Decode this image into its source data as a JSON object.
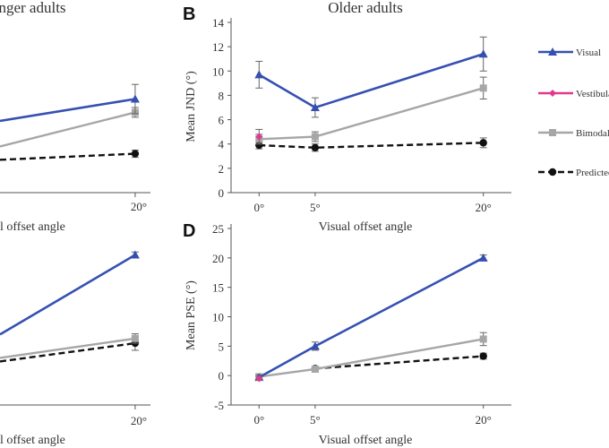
{
  "legend_items": [
    {
      "name": "Visual",
      "color": "#3650b2",
      "marker": "triangle",
      "dash": false
    },
    {
      "name": "Vestibular",
      "color": "#e3388f",
      "marker": "diamond",
      "dash": false
    },
    {
      "name": "Bimodal",
      "color": "#a6a6a6",
      "marker": "square",
      "dash": false
    },
    {
      "name": "Predicted",
      "color": "#111111",
      "marker": "circle",
      "dash": true
    }
  ],
  "chart_data": [
    {
      "type": "line",
      "panel_letter": "",
      "title": "nger adults",
      "xlabel": "l offset angle",
      "ylabel": "",
      "categories": [
        "20°"
      ],
      "x": [
        20
      ],
      "xlim": [
        -6.5,
        23
      ],
      "ylim": [
        0,
        14
      ],
      "yticks": [],
      "series": [
        {
          "name": "Visual",
          "values": [
            7.7
          ],
          "err": [
            1.2
          ]
        },
        {
          "name": "Bimodal",
          "values": [
            6.6
          ],
          "err": [
            0.4
          ]
        },
        {
          "name": "Predicted",
          "values": [
            3.2
          ],
          "err": [
            0.3
          ]
        }
      ],
      "partial_lines": [
        {
          "name": "Visual",
          "at_left_edge": 5.9
        },
        {
          "name": "Bimodal",
          "at_left_edge": 3.8
        },
        {
          "name": "Predicted",
          "at_left_edge": 2.7
        }
      ]
    },
    {
      "type": "line",
      "panel_letter": "B",
      "title": "Older adults",
      "xlabel": "Visual offset angle",
      "ylabel": "Mean JND (°)",
      "categories": [
        "0°",
        "5°",
        "20°"
      ],
      "x": [
        0,
        5,
        20
      ],
      "xlim": [
        -2.5,
        22.5
      ],
      "ylim": [
        0,
        14
      ],
      "yticks": [
        0,
        2,
        4,
        6,
        8,
        10,
        12,
        14
      ],
      "series": [
        {
          "name": "Visual",
          "values": [
            9.7,
            7.0,
            11.4
          ],
          "err": [
            1.1,
            0.8,
            1.4
          ]
        },
        {
          "name": "Vestibular",
          "values": [
            4.6,
            null,
            null
          ],
          "err": [
            0.6,
            null,
            null
          ]
        },
        {
          "name": "Bimodal",
          "values": [
            4.4,
            4.6,
            8.6
          ],
          "err": [
            0.4,
            0.4,
            0.9
          ]
        },
        {
          "name": "Predicted",
          "values": [
            3.9,
            3.7,
            4.1
          ],
          "err": [
            0.3,
            0.3,
            0.4
          ]
        }
      ]
    },
    {
      "type": "line",
      "panel_letter": "",
      "title": "",
      "xlabel": "l offset angle",
      "ylabel": "",
      "categories": [
        "20°"
      ],
      "x": [
        20
      ],
      "xlim": [
        -6.5,
        23
      ],
      "ylim": [
        -5,
        25
      ],
      "yticks": [],
      "series": [
        {
          "name": "Visual",
          "values": [
            20.5
          ],
          "err": [
            0.5
          ]
        },
        {
          "name": "Bimodal",
          "values": [
            6.3
          ],
          "err": [
            0.8
          ]
        },
        {
          "name": "Predicted",
          "values": [
            5.5
          ],
          "err": [
            1.2
          ]
        }
      ],
      "partial_lines": [
        {
          "name": "Visual",
          "at_left_edge": 7.0
        },
        {
          "name": "Bimodal",
          "at_left_edge": 3.0
        },
        {
          "name": "Predicted",
          "at_left_edge": 2.4
        }
      ]
    },
    {
      "type": "line",
      "panel_letter": "D",
      "title": "",
      "xlabel": "Visual offset angle",
      "ylabel": "Mean PSE (°)",
      "categories": [
        "0°",
        "5°",
        "20°"
      ],
      "x": [
        0,
        5,
        20
      ],
      "xlim": [
        -2.5,
        22.5
      ],
      "ylim": [
        -5,
        25
      ],
      "yticks": [
        -5,
        0,
        5,
        10,
        15,
        20,
        25
      ],
      "series": [
        {
          "name": "Visual",
          "values": [
            -0.3,
            5.0,
            20.0
          ],
          "err": [
            0.4,
            0.7,
            0.5
          ]
        },
        {
          "name": "Vestibular",
          "values": [
            -0.5,
            null,
            null
          ],
          "err": [
            0.3,
            null,
            null
          ]
        },
        {
          "name": "Bimodal",
          "values": [
            -0.2,
            1.1,
            6.2
          ],
          "err": [
            0.3,
            0.5,
            1.1
          ]
        },
        {
          "name": "Predicted",
          "values": [
            null,
            1.2,
            3.3
          ],
          "err": [
            null,
            0.2,
            0.5
          ]
        }
      ]
    }
  ]
}
